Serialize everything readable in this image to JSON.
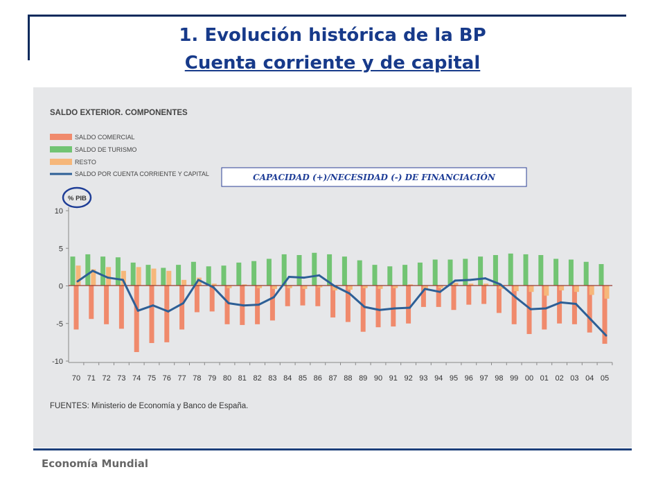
{
  "slide": {
    "title_line1": "1. Evolución histórica de la BP",
    "title_line2": "Cuenta corriente y de capital",
    "footer": "Economía Mundial"
  },
  "colors": {
    "comercial": "#f08a6c",
    "turismo": "#72c473",
    "resto": "#f6b77a",
    "line": "#2d5f96",
    "title": "#173a8a",
    "highlight": "#1f3e97"
  },
  "chart_data": {
    "type": "bar",
    "title": "SALDO EXTERIOR. COMPONENTES",
    "ylabel": "% PIB",
    "ylim": [
      -10,
      10
    ],
    "yticks": [
      10,
      5,
      0,
      -5,
      -10
    ],
    "source": "FUENTES: Ministerio de Economía y Banco de España.",
    "annotation": "CAPACIDAD (+)/NECESIDAD (-) DE FINANCIACIÓN",
    "categories": [
      "70",
      "71",
      "72",
      "73",
      "74",
      "75",
      "76",
      "77",
      "78",
      "79",
      "80",
      "81",
      "82",
      "83",
      "84",
      "85",
      "86",
      "87",
      "88",
      "89",
      "90",
      "91",
      "92",
      "93",
      "94",
      "95",
      "96",
      "97",
      "98",
      "99",
      "00",
      "01",
      "02",
      "03",
      "04",
      "05"
    ],
    "series": [
      {
        "name": "SALDO COMERCIAL",
        "kind": "bar",
        "values": [
          -5.8,
          -4.4,
          -5.1,
          -5.7,
          -8.8,
          -7.6,
          -7.5,
          -5.8,
          -3.5,
          -3.4,
          -5.1,
          -5.2,
          -5.1,
          -4.6,
          -2.7,
          -2.6,
          -2.7,
          -4.2,
          -4.8,
          -6.1,
          -5.5,
          -5.4,
          -5.0,
          -2.8,
          -2.8,
          -3.2,
          -2.5,
          -2.4,
          -3.6,
          -5.1,
          -6.4,
          -5.8,
          -5.0,
          -5.1,
          -6.2,
          -7.7
        ]
      },
      {
        "name": "SALDO DE TURISMO",
        "kind": "bar",
        "values": [
          3.9,
          4.2,
          3.9,
          3.8,
          3.1,
          2.8,
          2.4,
          2.8,
          3.2,
          2.6,
          2.7,
          3.1,
          3.3,
          3.6,
          4.2,
          4.1,
          4.4,
          4.2,
          3.9,
          3.4,
          2.8,
          2.6,
          2.8,
          3.1,
          3.5,
          3.5,
          3.6,
          3.9,
          4.1,
          4.3,
          4.2,
          4.1,
          3.6,
          3.5,
          3.2,
          2.9
        ]
      },
      {
        "name": "RESTO",
        "kind": "bar",
        "values": [
          2.7,
          2.2,
          2.5,
          2.0,
          2.5,
          2.3,
          2.0,
          0.8,
          1.1,
          0.3,
          -0.3,
          0.2,
          -0.3,
          -0.4,
          -0.3,
          -0.4,
          -0.2,
          -0.6,
          -0.5,
          -0.3,
          -0.4,
          -0.3,
          0.2,
          -0.6,
          -0.3,
          0.4,
          0.3,
          0.3,
          -0.4,
          -0.7,
          -0.8,
          -1.3,
          -0.6,
          -0.8,
          -1.2,
          -1.7
        ]
      },
      {
        "name": "SALDO POR CUENTA CORRIENTE Y CAPITAL",
        "kind": "line",
        "values": [
          0.6,
          2.0,
          1.1,
          0.8,
          -3.3,
          -2.6,
          -3.4,
          -2.3,
          0.8,
          -0.2,
          -2.3,
          -2.6,
          -2.5,
          -1.5,
          1.2,
          1.1,
          1.4,
          0.0,
          -1.0,
          -2.8,
          -3.2,
          -3.0,
          -2.9,
          -0.4,
          -0.8,
          0.7,
          0.8,
          1.0,
          0.2,
          -1.5,
          -3.1,
          -3.0,
          -2.2,
          -2.4,
          -4.5,
          -6.6
        ]
      }
    ]
  }
}
